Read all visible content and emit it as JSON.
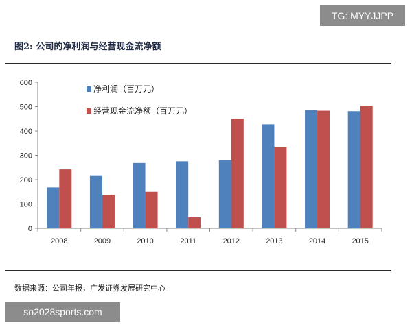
{
  "watermark_top": "TG: MYYJJPP",
  "watermark_bottom": "so2028sports.com",
  "figure_title": "图2: 公司的净利润与经营现金流净额",
  "source": "数据来源：公司年报，广发证券发展研究中心",
  "colors": {
    "net_profit": "#4f81bd",
    "operating_cash_flow": "#c0504d"
  },
  "chart_data": {
    "type": "bar",
    "title": "",
    "xlabel": "",
    "ylabel": "",
    "categories": [
      "2008",
      "2009",
      "2010",
      "2011",
      "2012",
      "2013",
      "2014",
      "2015"
    ],
    "series": [
      {
        "name": "净利润（百万元）",
        "values": [
          168,
          215,
          268,
          275,
          280,
          427,
          486,
          481
        ]
      },
      {
        "name": "经营现金流净额（百万元）",
        "values": [
          242,
          138,
          150,
          45,
          450,
          335,
          483,
          504
        ]
      }
    ],
    "ylim": [
      0,
      600
    ],
    "yticks": [
      0,
      100,
      200,
      300,
      400,
      500,
      600
    ],
    "grid": false,
    "legend_position": "top-left"
  }
}
